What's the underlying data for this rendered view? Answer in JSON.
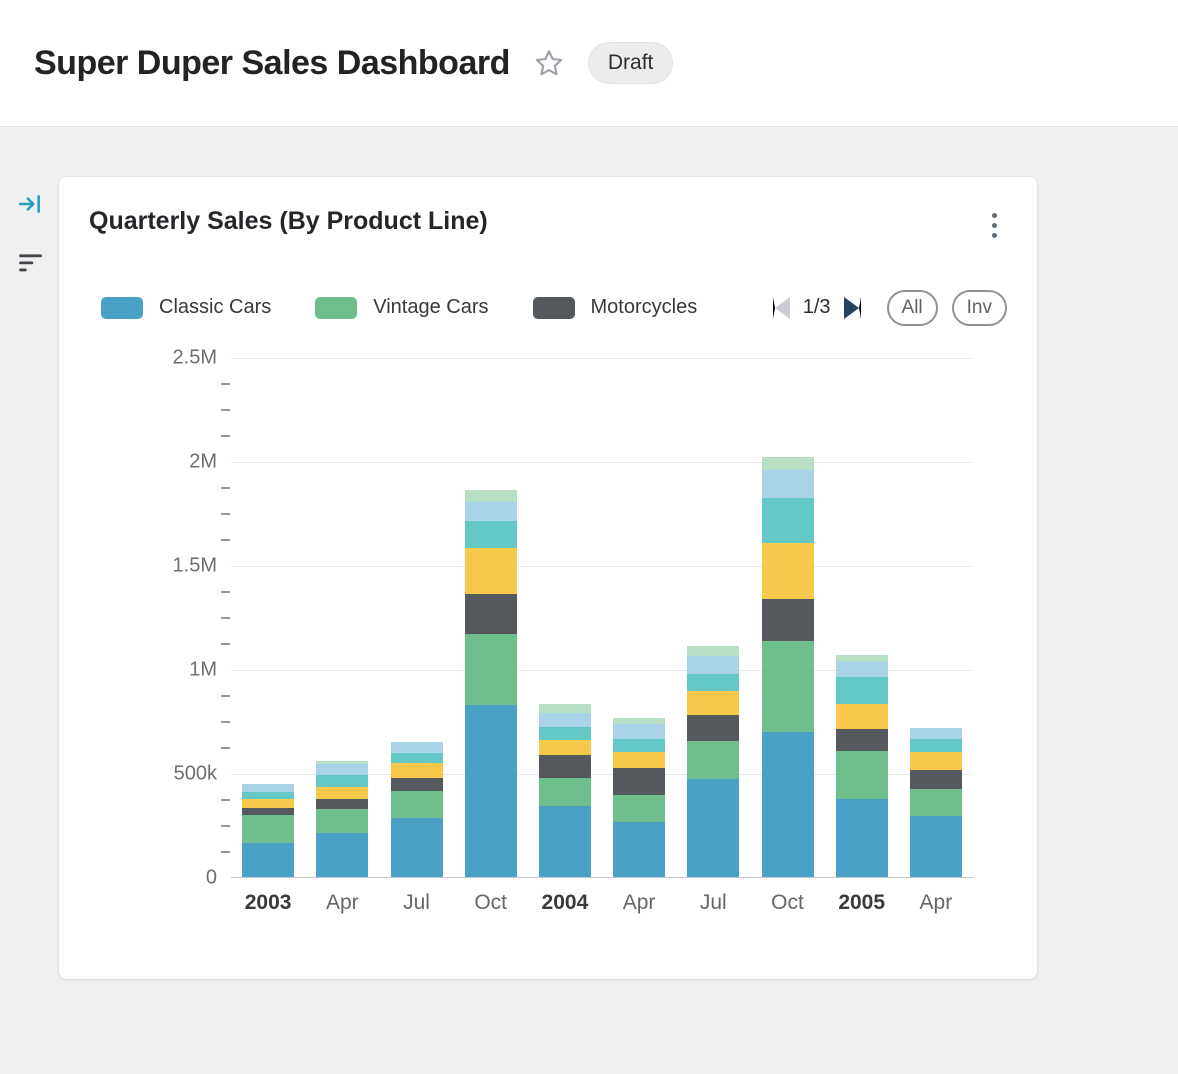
{
  "header": {
    "title": "Super Duper Sales Dashboard",
    "status_badge": "Draft"
  },
  "legend": {
    "items": [
      {
        "label": "Classic Cars",
        "color": "#4BA0C6"
      },
      {
        "label": "Vintage Cars",
        "color": "#6FBE8E"
      },
      {
        "label": "Motorcycles",
        "color": "#55585C"
      }
    ],
    "page": "1/3",
    "buttons": [
      {
        "label": "All"
      },
      {
        "label": "Inv"
      }
    ]
  },
  "chart_data": {
    "type": "bar",
    "stacked": true,
    "title": "Quarterly Sales (By Product Line)",
    "categories": [
      "2003",
      "Apr",
      "Jul",
      "Oct",
      "2004",
      "Apr",
      "Jul",
      "Oct",
      "2005",
      "Apr"
    ],
    "bold_categories": [
      "2003",
      "2004",
      "2005"
    ],
    "ylim": [
      0,
      2500000
    ],
    "ytick_values": [
      0,
      500000,
      1000000,
      1500000,
      2000000,
      2500000
    ],
    "ytick_labels": [
      "0",
      "500k",
      "1M",
      "1.5M",
      "2M",
      "2.5M"
    ],
    "minor_tick_step": 125000,
    "grid": "horizontal-major",
    "legend_position": "top",
    "series": [
      {
        "name": "Classic Cars",
        "color": "#4BA0C6",
        "in_legend": true,
        "values": [
          165000,
          210000,
          285000,
          825000,
          340000,
          265000,
          470000,
          695000,
          375000,
          295000
        ]
      },
      {
        "name": "Vintage Cars",
        "color": "#6FBE8E",
        "in_legend": true,
        "values": [
          135000,
          115000,
          130000,
          345000,
          135000,
          130000,
          185000,
          440000,
          230000,
          130000
        ]
      },
      {
        "name": "Motorcycles",
        "color": "#55585C",
        "in_legend": true,
        "values": [
          30000,
          50000,
          60000,
          190000,
          110000,
          130000,
          125000,
          200000,
          105000,
          90000
        ]
      },
      {
        "name": "series-4-yellow",
        "color": "#F6C94A",
        "in_legend": false,
        "values": [
          45000,
          60000,
          75000,
          220000,
          75000,
          75000,
          115000,
          270000,
          120000,
          85000
        ]
      },
      {
        "name": "series-5-teal",
        "color": "#64C8C7",
        "in_legend": false,
        "values": [
          35000,
          55000,
          45000,
          130000,
          60000,
          65000,
          80000,
          215000,
          130000,
          65000
        ]
      },
      {
        "name": "series-6-light-blue",
        "color": "#A8D3E9",
        "in_legend": false,
        "values": [
          35000,
          55000,
          55000,
          95000,
          70000,
          70000,
          90000,
          135000,
          75000,
          50000
        ]
      },
      {
        "name": "series-7-light-green",
        "color": "#B7DFC3",
        "in_legend": false,
        "values": [
          0,
          15000,
          0,
          55000,
          40000,
          30000,
          45000,
          65000,
          35000,
          0
        ]
      }
    ]
  }
}
